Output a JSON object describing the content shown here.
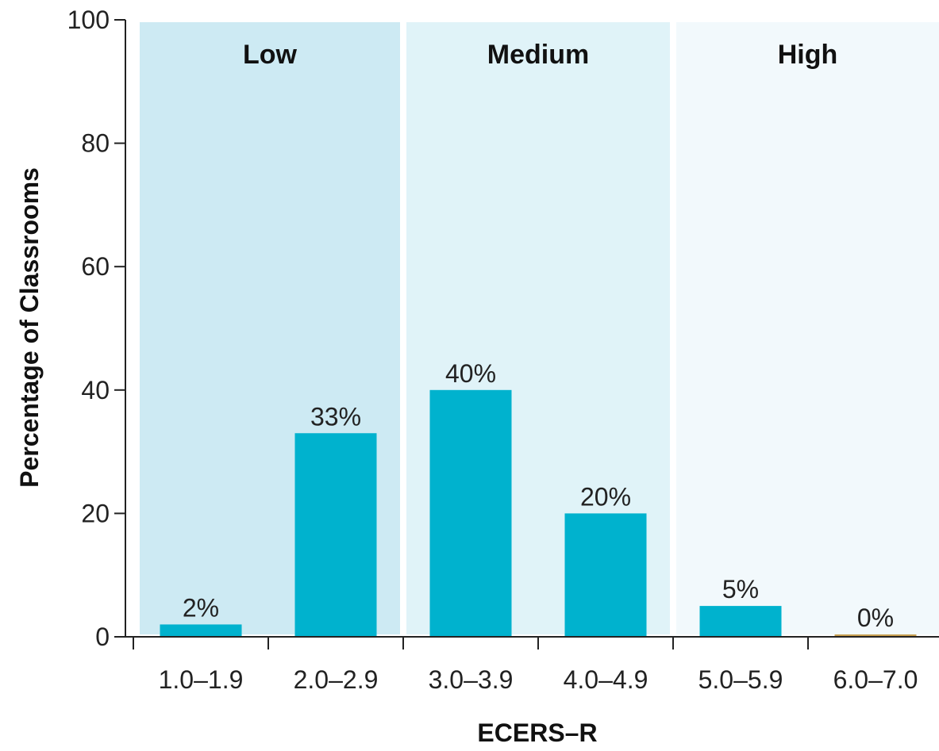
{
  "chart_data": {
    "type": "bar",
    "title": "",
    "xlabel": "ECERS–R",
    "ylabel": "Percentage of Classrooms",
    "ylim": [
      0,
      100
    ],
    "yticks": [
      0,
      20,
      40,
      60,
      80,
      100
    ],
    "categories": [
      "1.0–1.9",
      "2.0–2.9",
      "3.0–3.9",
      "4.0–4.9",
      "5.0–5.9",
      "6.0–7.0"
    ],
    "values": [
      2,
      33,
      40,
      20,
      5,
      0
    ],
    "data_labels": [
      "2%",
      "33%",
      "40%",
      "20%",
      "5%",
      "0%"
    ],
    "bands": [
      {
        "label": "Low",
        "categories": [
          "1.0–1.9",
          "2.0–2.9"
        ],
        "color": "#cdeaf3"
      },
      {
        "label": "Medium",
        "categories": [
          "3.0–3.9",
          "4.0–4.9"
        ],
        "color": "#e0f3f8"
      },
      {
        "label": "High",
        "categories": [
          "5.0–5.9",
          "6.0–7.0"
        ],
        "color": "#f2f9fc"
      }
    ],
    "bar_color": "#00b2ce",
    "zero_bar_color": "#c8a050",
    "grid": false,
    "legend": "none"
  }
}
